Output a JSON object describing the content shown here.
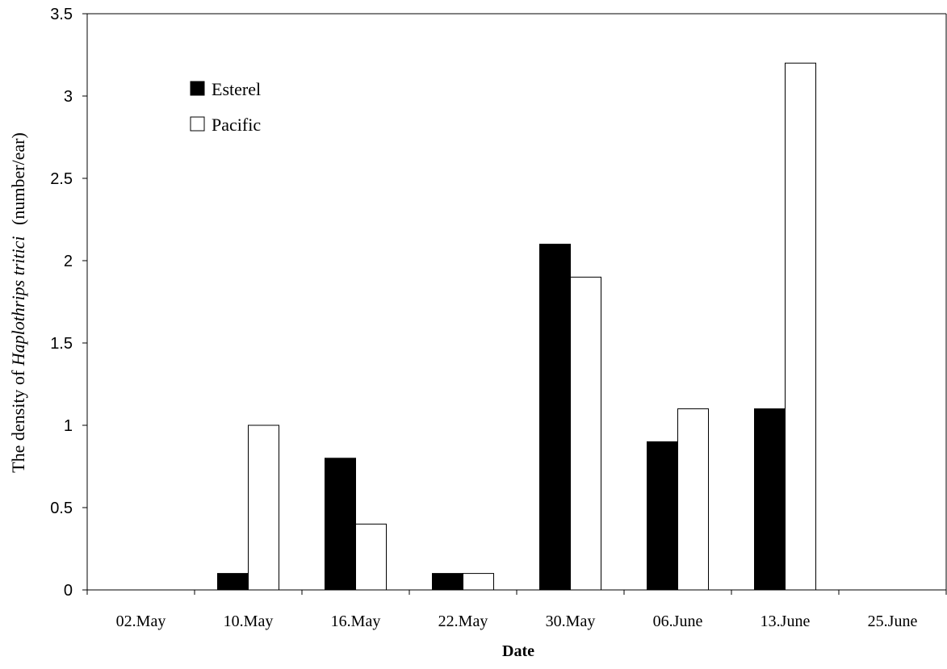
{
  "chart_data": {
    "type": "bar",
    "categories": [
      "02.May",
      "10.May",
      "16.May",
      "22.May",
      "30.May",
      "06.June",
      "13.June",
      "25.June"
    ],
    "series": [
      {
        "name": "Esterel",
        "values": [
          0,
          0.1,
          0.8,
          0.1,
          2.1,
          0.9,
          1.1,
          0
        ],
        "color": "#000000"
      },
      {
        "name": "Pacific",
        "values": [
          0,
          1.0,
          0.4,
          0.1,
          1.9,
          1.1,
          3.2,
          0
        ],
        "color": "#ffffff"
      }
    ],
    "xlabel": "Date",
    "ylabel_prefix": "The density of",
    "ylabel_species": "Haplothrips tritici",
    "ylabel_suffix": "(number/ear)",
    "ylim": [
      0,
      3.5
    ],
    "yticks": [
      0,
      0.5,
      1,
      1.5,
      2,
      2.5,
      3,
      3.5
    ],
    "ytick_labels": [
      "0",
      "0.5",
      "1",
      "1.5",
      "2",
      "2.5",
      "3",
      "3.5"
    ],
    "grid": false,
    "legend_position": "top-left"
  }
}
